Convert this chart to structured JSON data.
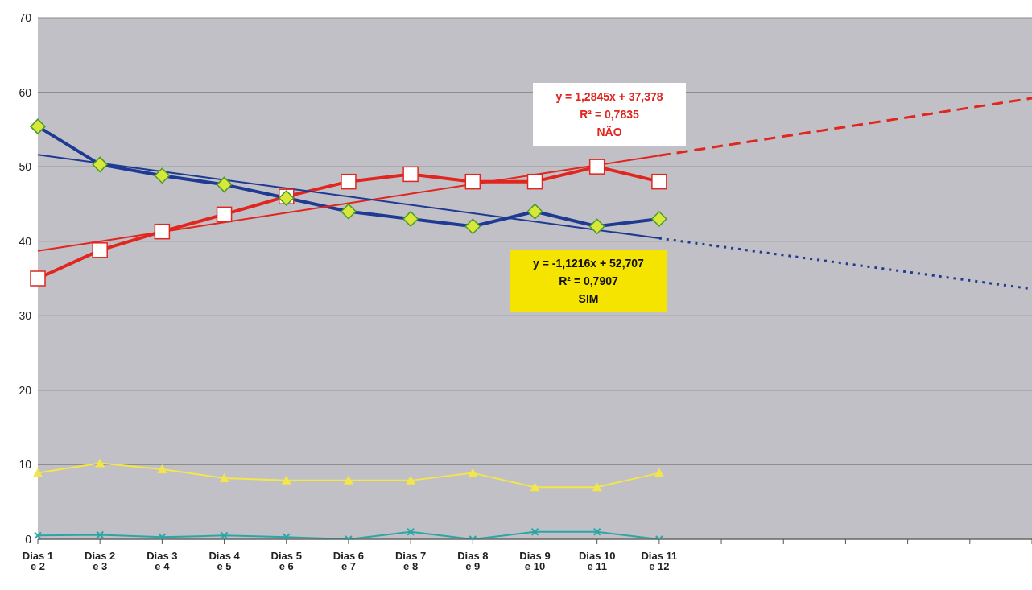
{
  "chart_data": {
    "type": "line",
    "categories": [
      "Dias 1 e 2",
      "Dias 2 e 3",
      "Dias 3 e 4",
      "Dias 4 e 5",
      "Dias 5 e 6",
      "Dias 6 e 7",
      "Dias 7 e 8",
      "Dias 8 e 9",
      "Dias 9 e 10",
      "Dias 10 e 11",
      "Dias 11 e 12",
      null,
      null,
      null,
      null,
      null,
      null
    ],
    "series": [
      {
        "color": "#e0261e",
        "marker": "square",
        "values": [
          35,
          38.8,
          41.3,
          43.6,
          46,
          48,
          49,
          48,
          48,
          50,
          48,
          null,
          null,
          null,
          null,
          null,
          null
        ]
      },
      {
        "color": "#1f3a93",
        "marker": "diamond",
        "values": [
          55.4,
          50.3,
          48.8,
          47.6,
          45.8,
          44,
          43,
          42,
          44,
          42,
          43,
          null,
          null,
          null,
          null,
          null,
          null
        ]
      },
      {
        "color": "#f2e64a",
        "marker": "triangle",
        "values": [
          8.9,
          10.2,
          9.4,
          8.2,
          7.9,
          7.9,
          7.9,
          8.9,
          7,
          7,
          8.9,
          null,
          null,
          null,
          null,
          null,
          null
        ]
      },
      {
        "color": "#2aa6a6",
        "marker": "cross",
        "values": [
          0.5,
          0.6,
          0.3,
          0.5,
          0.3,
          0,
          1,
          0,
          1,
          1,
          0,
          null,
          null,
          null,
          null,
          null,
          null
        ]
      },
      {
        "color": "#e0261e",
        "marker": "none",
        "line_style": "solid",
        "values": [
          38.7,
          null,
          null,
          null,
          null,
          null,
          null,
          null,
          null,
          null,
          51.5,
          null,
          null,
          null,
          null,
          null,
          null
        ]
      },
      {
        "color": "#e0261e",
        "marker": "none",
        "line_style": "dashed",
        "values": [
          null,
          null,
          null,
          null,
          null,
          null,
          null,
          null,
          null,
          null,
          51.5,
          null,
          null,
          null,
          null,
          null,
          59.2
        ]
      },
      {
        "color": "#1f3a93",
        "marker": "none",
        "line_style": "solid",
        "values": [
          51.6,
          null,
          null,
          null,
          null,
          null,
          null,
          null,
          null,
          null,
          40.4,
          null,
          null,
          null,
          null,
          null,
          null
        ]
      },
      {
        "color": "#1f3a93",
        "marker": "none",
        "line_style": "dotted",
        "values": [
          null,
          null,
          null,
          null,
          null,
          null,
          null,
          null,
          null,
          null,
          40.4,
          null,
          null,
          null,
          null,
          null,
          33.6
        ]
      }
    ],
    "ylim": [
      0,
      70
    ],
    "yticks": [
      0,
      10,
      20,
      30,
      40,
      50,
      60,
      70
    ],
    "grid": "y",
    "legend": false,
    "annotations": [
      "y = 1,2845x + 37,378\nR² = 0,7835\nNÃO",
      "y = -1,1216x + 52,707\nR² = 0,7907\nSIM"
    ]
  }
}
